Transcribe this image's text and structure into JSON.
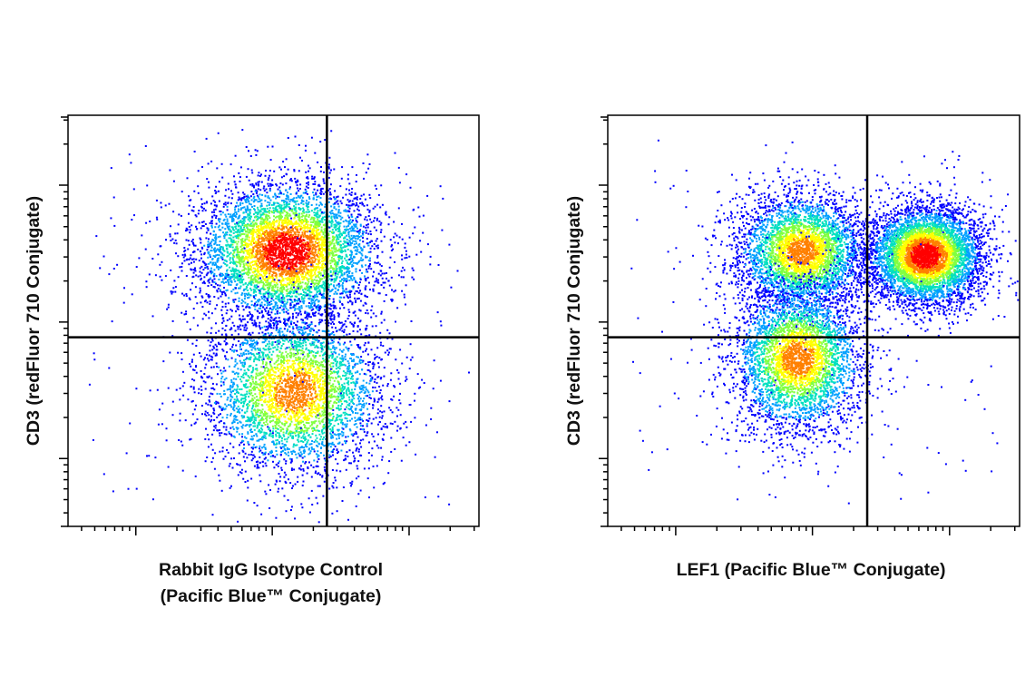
{
  "chart_data": [
    {
      "type": "scatter",
      "subtype": "flow-cytometry-density-plot",
      "title": "",
      "xlabel": [
        "Rabbit IgG Isotype Control",
        "(Pacific Blue™ Conjugate)"
      ],
      "ylabel": "CD3 (redFluor 710 Conjugate)",
      "x_scale": "log",
      "y_scale": "log",
      "grid": false,
      "legend": "none",
      "color_scale": [
        "#0000ff",
        "#00a0ff",
        "#00e0c0",
        "#80ff40",
        "#ffff00",
        "#ff8000",
        "#ff0000"
      ],
      "quadrant_gate": {
        "x": 0.63,
        "y": 0.46
      },
      "populations": [
        {
          "center": [
            0.53,
            0.67
          ],
          "spread": [
            0.11,
            0.085
          ],
          "density": "high"
        },
        {
          "center": [
            0.55,
            0.33
          ],
          "spread": [
            0.11,
            0.1
          ],
          "density": "medium"
        }
      ]
    },
    {
      "type": "scatter",
      "subtype": "flow-cytometry-density-plot",
      "title": "",
      "xlabel": [
        "LEF1 (Pacific Blue™ Conjugate)"
      ],
      "ylabel": "CD3 (redFluor 710 Conjugate)",
      "x_scale": "log",
      "y_scale": "log",
      "grid": false,
      "legend": "none",
      "color_scale": [
        "#0000ff",
        "#00a0ff",
        "#00e0c0",
        "#80ff40",
        "#ffff00",
        "#ff8000",
        "#ff0000"
      ],
      "quadrant_gate": {
        "x": 0.63,
        "y": 0.46
      },
      "populations": [
        {
          "center": [
            0.47,
            0.67
          ],
          "spread": [
            0.08,
            0.07
          ],
          "density": "medium"
        },
        {
          "center": [
            0.77,
            0.66
          ],
          "spread": [
            0.07,
            0.06
          ],
          "density": "high"
        },
        {
          "center": [
            0.46,
            0.41
          ],
          "spread": [
            0.08,
            0.09
          ],
          "density": "medium"
        }
      ]
    }
  ]
}
